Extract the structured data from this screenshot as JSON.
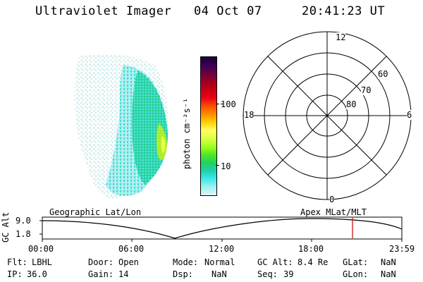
{
  "header": {
    "title": "Ultraviolet Imager",
    "date": "04 Oct 07",
    "time": "20:41:23 UT"
  },
  "colorbar": {
    "unit_label": "photon cm⁻²s⁻¹",
    "ticks": [
      "100",
      "10"
    ],
    "colors": [
      "#1a0033",
      "#3a0055",
      "#6a0040",
      "#9a0020",
      "#c80010",
      "#e8001a",
      "#ff4a00",
      "#ff8c00",
      "#ffd000",
      "#ffff60",
      "#e0ff40",
      "#a0ff20",
      "#50e820",
      "#20d060",
      "#20d0b0",
      "#40e8e8",
      "#a0f0f0",
      "#e0f4f4"
    ]
  },
  "polar_plot": {
    "labels": {
      "top": "12",
      "bottom": "0",
      "left": "18",
      "right": "6"
    },
    "rings": [
      "60",
      "70",
      "80"
    ]
  },
  "timeline": {
    "y_axis_label": "GC Alt",
    "y_ticks": [
      "9.0",
      "1.8"
    ],
    "left_caption": "Geographic Lat/Lon",
    "right_caption": "Apex MLat/MLT",
    "x_ticks": [
      "00:00",
      "06:00",
      "12:00",
      "18:00",
      "23:59"
    ],
    "marker_color": "#cc0000"
  },
  "status": {
    "row1": [
      {
        "key": "Flt:",
        "val": "LBHL"
      },
      {
        "key": "Door:",
        "val": "Open"
      },
      {
        "key": "Mode:",
        "val": "Normal"
      },
      {
        "key": "GC Alt:",
        "val": "8.4 Re"
      },
      {
        "key": "GLat:",
        "val": "NaN"
      }
    ],
    "row2": [
      {
        "key": "IP:",
        "val": "36.0"
      },
      {
        "key": "Gain:",
        "val": "14"
      },
      {
        "key": "Dsp:",
        "val": "NaN"
      },
      {
        "key": "Seq:",
        "val": "39"
      },
      {
        "key": "GLon:",
        "val": "NaN"
      }
    ]
  }
}
